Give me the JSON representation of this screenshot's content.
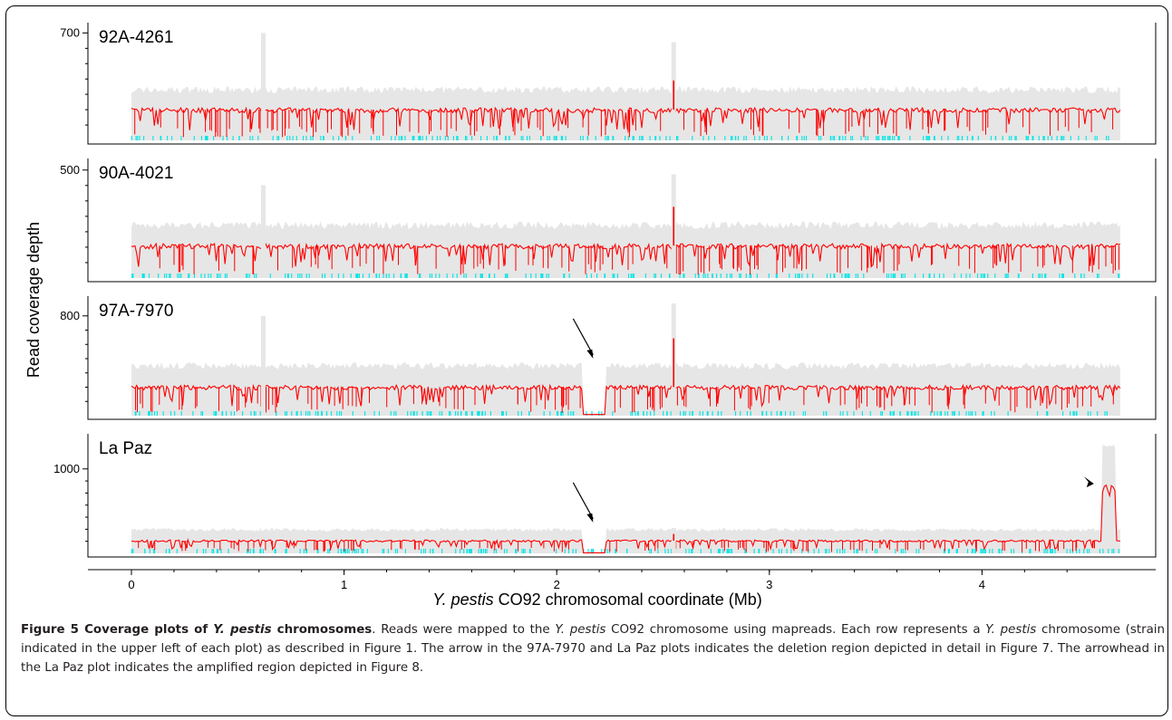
{
  "chart_data": {
    "type": "area",
    "x_label_italic": "Y. pestis",
    "x_label_rest": " CO92 chromosomal coordinate (Mb)",
    "y_label": "Read coverage depth",
    "x_range": [
      0,
      4.65
    ],
    "x_ticks": [
      "0",
      "1",
      "2",
      "3",
      "4"
    ],
    "x_tick_values": [
      0,
      1,
      2,
      3,
      4
    ],
    "grid": false,
    "colors": {
      "depth_range": "#e6e6e6",
      "depth_median": "#ff0000",
      "low_coverage_marks": "#00e5e5",
      "arrow": "#000000"
    },
    "panels": [
      {
        "strain": "92A-4261",
        "y_tick_label": "700",
        "y_tick_value": 700,
        "y_range": [
          0,
          720
        ],
        "baseline_median": 200,
        "baseline_upper": 330,
        "spikes": [
          {
            "x": 0.62,
            "upper": 700,
            "median": 200
          },
          {
            "x": 2.55,
            "upper": 640,
            "median": 390
          }
        ],
        "deletion": null,
        "amplification": null
      },
      {
        "strain": "90A-4021",
        "y_tick_label": "500",
        "y_tick_value": 500,
        "y_range": [
          0,
          520
        ],
        "baseline_median": 150,
        "baseline_upper": 245,
        "spikes": [
          {
            "x": 0.62,
            "upper": 430,
            "median": 150
          },
          {
            "x": 2.55,
            "upper": 480,
            "median": 330
          }
        ],
        "deletion": null,
        "amplification": null
      },
      {
        "strain": "97A-7970",
        "y_tick_label": "800",
        "y_tick_value": 800,
        "y_range": [
          0,
          900
        ],
        "baseline_median": 230,
        "baseline_upper": 400,
        "spikes": [
          {
            "x": 0.62,
            "upper": 800,
            "median": 230
          },
          {
            "x": 2.55,
            "upper": 900,
            "median": 620
          }
        ],
        "deletion": {
          "start": 2.12,
          "end": 2.23
        },
        "amplification": null
      },
      {
        "strain": "La Paz",
        "y_tick_label": "1000",
        "y_tick_value": 1000,
        "y_range": [
          0,
          1330
        ],
        "baseline_median": 150,
        "baseline_upper": 280,
        "spikes": [
          {
            "x": 2.55,
            "upper": 300,
            "median": 230
          }
        ],
        "deletion": {
          "start": 2.12,
          "end": 2.23
        },
        "amplification": {
          "start": 4.56,
          "end": 4.63,
          "median": 750,
          "upper": 1300
        }
      }
    ]
  },
  "caption": {
    "figure_label": "Figure 5",
    "title_prefix": " Coverage plots of ",
    "title_italic": "Y. pestis",
    "title_suffix": " chromosomes",
    "s1": ". Reads were mapped to the ",
    "s1_italic": "Y. pestis",
    "s2": " CO92 chromosome using mapreads. Each row represents a ",
    "s2_italic": "Y. pestis",
    "s3": " chromosome (strain indicated in the upper left of each plot) as described in Figure 1. The arrow in the 97A-7970 and La Paz plots indicates the deletion region depicted in detail in Figure 7. The arrowhead in the La Paz plot indicates the amplified region depicted in Figure 8."
  }
}
